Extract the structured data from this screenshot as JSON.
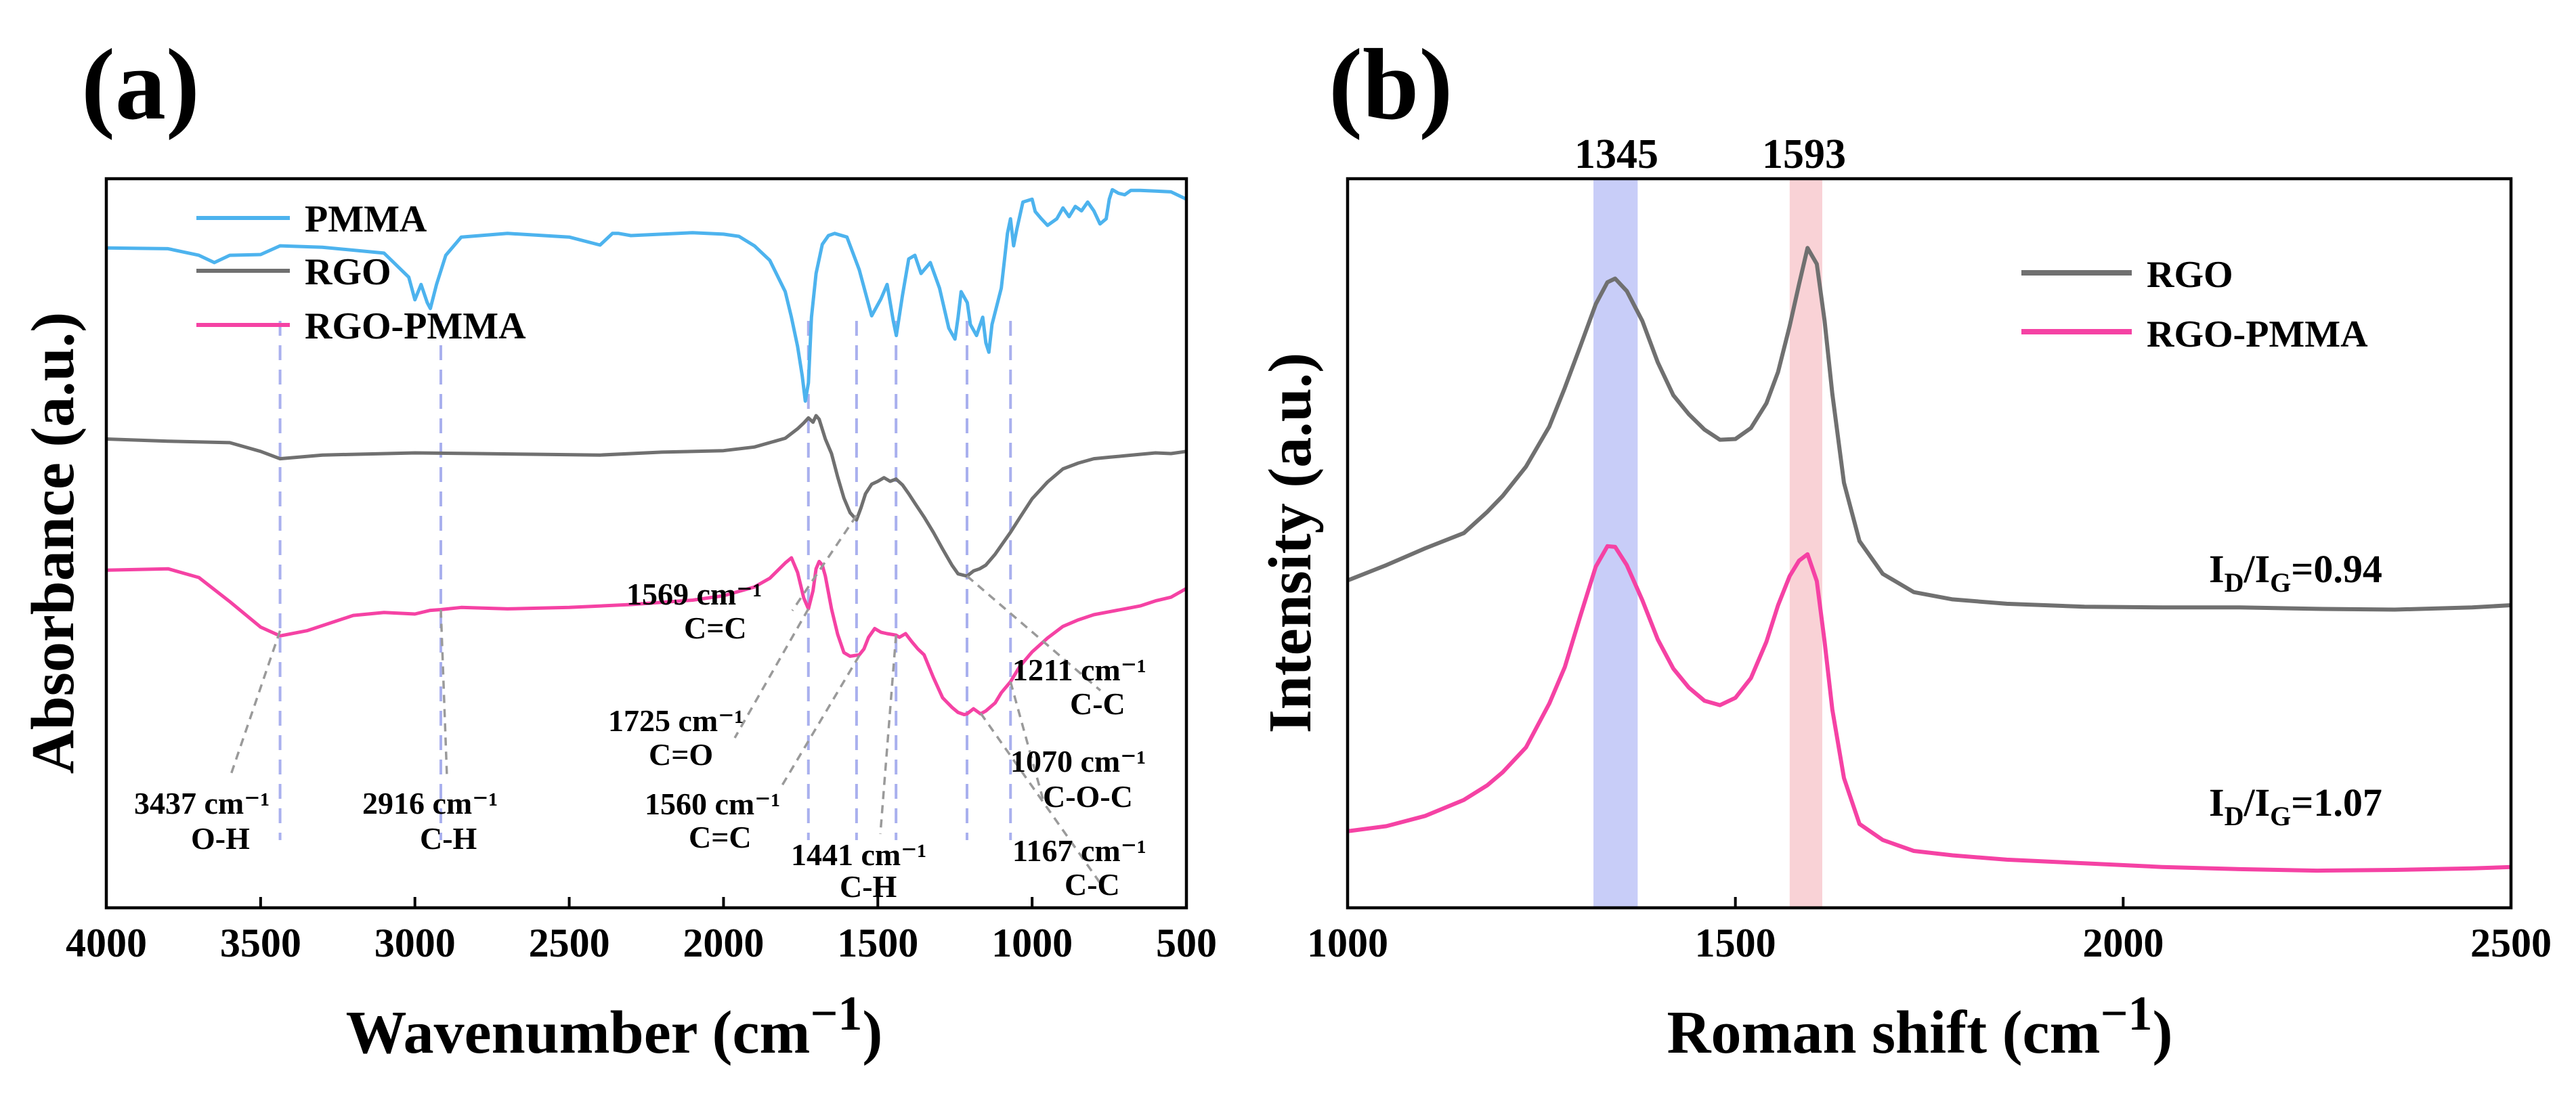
{
  "chart_data": [
    {
      "panel": "(a)",
      "type": "line",
      "xlabel": "Wavenumber",
      "xunit": "cm",
      "xunit_exp": "−1",
      "ylabel": "Absorbance (a.u.)",
      "xlim": [
        4000,
        500
      ],
      "ylim": [
        0,
        100
      ],
      "xticks": [
        4000,
        3500,
        3000,
        2500,
        2000,
        1500,
        1000,
        500
      ],
      "yticks_shown": false,
      "legend_position": "top-left",
      "guides": [
        3437,
        2916,
        1725,
        1569,
        1441,
        1211,
        1070
      ],
      "series": [
        {
          "name": "PMMA",
          "color": "#4db3ee",
          "x": [
            4000,
            3800,
            3700,
            3650,
            3600,
            3500,
            3437,
            3300,
            3100,
            3020,
            3000,
            2980,
            2960,
            2950,
            2930,
            2900,
            2850,
            2700,
            2500,
            2400,
            2360,
            2340,
            2300,
            2100,
            2000,
            1950,
            1900,
            1850,
            1800,
            1780,
            1760,
            1745,
            1735,
            1725,
            1715,
            1700,
            1680,
            1660,
            1640,
            1600,
            1560,
            1520,
            1490,
            1470,
            1450,
            1440,
            1420,
            1400,
            1380,
            1360,
            1330,
            1300,
            1270,
            1250,
            1240,
            1230,
            1210,
            1200,
            1180,
            1160,
            1150,
            1140,
            1130,
            1100,
            1080,
            1070,
            1060,
            1050,
            1030,
            1000,
            990,
            970,
            950,
            920,
            900,
            880,
            860,
            840,
            820,
            800,
            780,
            760,
            750,
            740,
            720,
            700,
            680,
            650,
            600,
            550,
            500
          ],
          "y": [
            90.5,
            90.4,
            89.5,
            88.5,
            89.5,
            89.6,
            90.8,
            90.6,
            89.8,
            86.5,
            83.4,
            85.5,
            83,
            82.2,
            85.5,
            89.5,
            92,
            92.5,
            92,
            90.9,
            92.5,
            92.5,
            92.2,
            92.6,
            92.4,
            92.1,
            90.8,
            88.8,
            84.5,
            81,
            77,
            73,
            69.5,
            72,
            81,
            87,
            91,
            92.2,
            92.5,
            92,
            87.5,
            81.2,
            83.5,
            85.5,
            80.5,
            78.5,
            84,
            89,
            89.5,
            87,
            88.5,
            85,
            79.5,
            78,
            81,
            84.5,
            83,
            80,
            78.5,
            81,
            77.5,
            76.2,
            80,
            85,
            92.5,
            94.5,
            90.8,
            93,
            96.8,
            97.2,
            95.5,
            94.5,
            93.6,
            94.5,
            96,
            94.8,
            96.2,
            95.6,
            96.8,
            95.6,
            93.8,
            94.5,
            97.2,
            98.5,
            98,
            97.8,
            98.4,
            98.4,
            98.3,
            98.2,
            97.2
          ]
        },
        {
          "name": "RGO",
          "color": "#707070",
          "x": [
            4000,
            3800,
            3600,
            3500,
            3437,
            3300,
            3000,
            2800,
            2600,
            2400,
            2200,
            2000,
            1900,
            1800,
            1760,
            1740,
            1725,
            1710,
            1700,
            1690,
            1670,
            1650,
            1630,
            1610,
            1590,
            1569,
            1555,
            1540,
            1520,
            1500,
            1480,
            1460,
            1441,
            1420,
            1400,
            1380,
            1350,
            1320,
            1290,
            1260,
            1240,
            1211,
            1190,
            1170,
            1150,
            1120,
            1100,
            1070,
            1040,
            1000,
            950,
            900,
            850,
            800,
            750,
            700,
            650,
            600,
            550,
            500
          ],
          "y": [
            64.3,
            64,
            63.8,
            62.6,
            61.6,
            62.1,
            62.4,
            62.3,
            62.2,
            62.1,
            62.5,
            62.7,
            63.2,
            64.4,
            65.7,
            66.5,
            67.2,
            66.6,
            67.5,
            67,
            64.3,
            62.3,
            59.1,
            56.2,
            54.2,
            53.2,
            54.8,
            56.8,
            58.1,
            58.5,
            59,
            58.5,
            58.8,
            58,
            56.8,
            55.5,
            53.6,
            51.5,
            49.2,
            47,
            45.8,
            45.5,
            46.2,
            46.5,
            47,
            48.5,
            49.7,
            51.5,
            53.5,
            56.1,
            58.4,
            60.2,
            61,
            61.6,
            61.8,
            62,
            62.2,
            62.4,
            62.3,
            62.6
          ]
        },
        {
          "name": "RGO-PMMA",
          "color": "#f542a4",
          "x": [
            4000,
            3800,
            3700,
            3600,
            3500,
            3437,
            3350,
            3200,
            3100,
            3000,
            2950,
            2916,
            2850,
            2700,
            2500,
            2300,
            2100,
            2000,
            1900,
            1850,
            1800,
            1780,
            1760,
            1740,
            1725,
            1710,
            1700,
            1690,
            1680,
            1670,
            1650,
            1630,
            1610,
            1590,
            1560,
            1545,
            1530,
            1510,
            1490,
            1470,
            1441,
            1430,
            1410,
            1390,
            1370,
            1350,
            1320,
            1290,
            1260,
            1240,
            1220,
            1211,
            1190,
            1167,
            1150,
            1120,
            1100,
            1070,
            1040,
            1000,
            950,
            900,
            850,
            800,
            750,
            700,
            650,
            600,
            550,
            500
          ],
          "y": [
            46.3,
            46.5,
            45.3,
            42,
            38.5,
            37.3,
            38,
            40.1,
            40.5,
            40.3,
            40.8,
            40.9,
            41.2,
            41,
            41.2,
            41.6,
            42.2,
            42.8,
            44,
            45.2,
            47.3,
            48,
            46,
            42.5,
            41,
            43.5,
            46.5,
            47.5,
            47,
            45.5,
            41,
            37.5,
            35,
            34.5,
            34.7,
            35.5,
            37.1,
            38.3,
            37.8,
            37.6,
            37.4,
            37.1,
            37.6,
            36.5,
            35.5,
            34.7,
            31.6,
            28.8,
            27.5,
            26.8,
            26.5,
            26.6,
            27.3,
            26.6,
            27,
            28.1,
            29.5,
            31,
            33.1,
            35.1,
            37,
            38.6,
            39.5,
            40.2,
            40.6,
            41,
            41.4,
            42.1,
            42.6,
            43.8
          ]
        }
      ],
      "annotations": [
        {
          "line1": "3437 cm⁻¹",
          "line2": "O-H"
        },
        {
          "line1": "2916 cm⁻¹",
          "line2": "C-H"
        },
        {
          "line1": "1569 cm⁻¹",
          "line2": "C=C"
        },
        {
          "line1": "1211 cm⁻¹",
          "line2": "C-C"
        },
        {
          "line1": "1725 cm⁻¹",
          "line2": "C=O"
        },
        {
          "line1": "1070 cm⁻¹",
          "line2": "C-O-C"
        },
        {
          "line1": "1560 cm⁻¹",
          "line2": "C=C"
        },
        {
          "line1": "1441 cm⁻¹",
          "line2": "C-H"
        },
        {
          "line1": "1167 cm⁻¹",
          "line2": "C-C"
        }
      ]
    },
    {
      "panel": "(b)",
      "type": "line",
      "xlabel": "Roman shift",
      "xunit": "cm",
      "xunit_exp": "−1",
      "ylabel": "Intensity (a.u.)",
      "xlim": [
        1000,
        2500
      ],
      "ylim": [
        0,
        100
      ],
      "xticks": [
        1000,
        1500,
        2000,
        2500
      ],
      "yticks_shown": false,
      "legend_position": "top-right",
      "bands": [
        {
          "label": "1345",
          "from": 1317,
          "to": 1374,
          "color": "#c8cdf8"
        },
        {
          "label": "1593",
          "from": 1570,
          "to": 1612,
          "color": "#f9d2d6"
        }
      ],
      "series": [
        {
          "name": "RGO",
          "color": "#707070",
          "ratio_text": "I_D/I_G=0.94",
          "x": [
            1000,
            1050,
            1100,
            1150,
            1180,
            1200,
            1230,
            1260,
            1280,
            1300,
            1320,
            1335,
            1345,
            1360,
            1380,
            1400,
            1420,
            1440,
            1460,
            1480,
            1500,
            1520,
            1540,
            1555,
            1570,
            1582,
            1593,
            1605,
            1615,
            1625,
            1640,
            1660,
            1690,
            1730,
            1780,
            1850,
            1950,
            2050,
            2150,
            2250,
            2350,
            2450,
            2500
          ],
          "y": [
            44.9,
            47,
            49.3,
            51.4,
            54.3,
            56.5,
            60.5,
            66,
            71.3,
            77,
            82.8,
            85.8,
            86.3,
            84.6,
            80.5,
            74.8,
            70.3,
            67.7,
            65.6,
            64.2,
            64.3,
            65.8,
            69.2,
            73.5,
            79.8,
            85.5,
            90.5,
            88.3,
            80.5,
            70.5,
            58.3,
            50.3,
            45.8,
            43.3,
            42.3,
            41.7,
            41.3,
            41.2,
            41.2,
            41,
            40.9,
            41.2,
            41.5
          ]
        },
        {
          "name": "RGO-PMMA",
          "color": "#f542a4",
          "ratio_text": "I_D/I_G=1.07",
          "x": [
            1000,
            1050,
            1100,
            1150,
            1180,
            1200,
            1230,
            1260,
            1280,
            1300,
            1320,
            1335,
            1345,
            1360,
            1380,
            1400,
            1420,
            1440,
            1460,
            1480,
            1500,
            1520,
            1540,
            1555,
            1570,
            1582,
            1593,
            1605,
            1615,
            1625,
            1640,
            1660,
            1690,
            1730,
            1780,
            1850,
            1950,
            2050,
            2150,
            2250,
            2350,
            2450,
            2500
          ],
          "y": [
            10.5,
            11.2,
            12.6,
            14.8,
            16.8,
            18.6,
            22,
            28,
            33,
            40,
            46.8,
            49.6,
            49.5,
            47,
            42.2,
            36.8,
            32.8,
            30.2,
            28.4,
            27.8,
            28.8,
            31.5,
            36.5,
            41.5,
            45.5,
            47.6,
            48.5,
            44.8,
            36.5,
            27.2,
            17.8,
            11.5,
            9.3,
            7.8,
            7.2,
            6.6,
            6.1,
            5.6,
            5.3,
            5.1,
            5.2,
            5.4,
            5.6
          ]
        }
      ]
    }
  ]
}
